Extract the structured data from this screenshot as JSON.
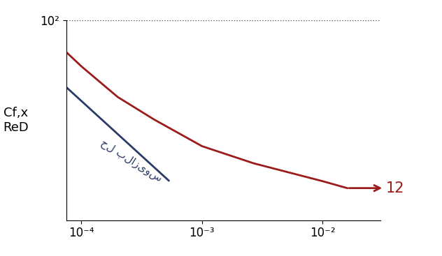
{
  "chart_data": {
    "type": "line",
    "y_label": "Cf,x\nReD",
    "log": true,
    "grid": true,
    "xlim": [
      7.5e-05,
      0.03
    ],
    "ylim": [
      8,
      100
    ],
    "xticks": [
      {
        "value": 0.0001,
        "label": "10⁻⁴"
      },
      {
        "value": 0.001,
        "label": "10⁻³"
      },
      {
        "value": 0.01,
        "label": "10⁻²"
      }
    ],
    "yticks": [
      {
        "value": 100,
        "label": "10²"
      }
    ],
    "series": [
      {
        "color": "#9b1b1b",
        "x": [
          7.5e-05,
          0.0001,
          0.0002,
          0.0004,
          0.001,
          0.0027,
          0.01,
          0.016
        ],
        "values": [
          67,
          56,
          38,
          28.6,
          20.4,
          16.4,
          13.1,
          12
        ]
      },
      {
        "color": "#2b3a67",
        "x": [
          7.5e-05,
          0.00053
        ],
        "values": [
          43,
          13.2
        ]
      }
    ],
    "annotations": [
      {
        "text": "حل بلازیوس",
        "x": 0.00026,
        "y": 17,
        "color": "#2b3a67"
      },
      {
        "text": "12",
        "x": 0.016,
        "y": 12,
        "color": "#9b1b1b",
        "arrow": true
      }
    ]
  }
}
